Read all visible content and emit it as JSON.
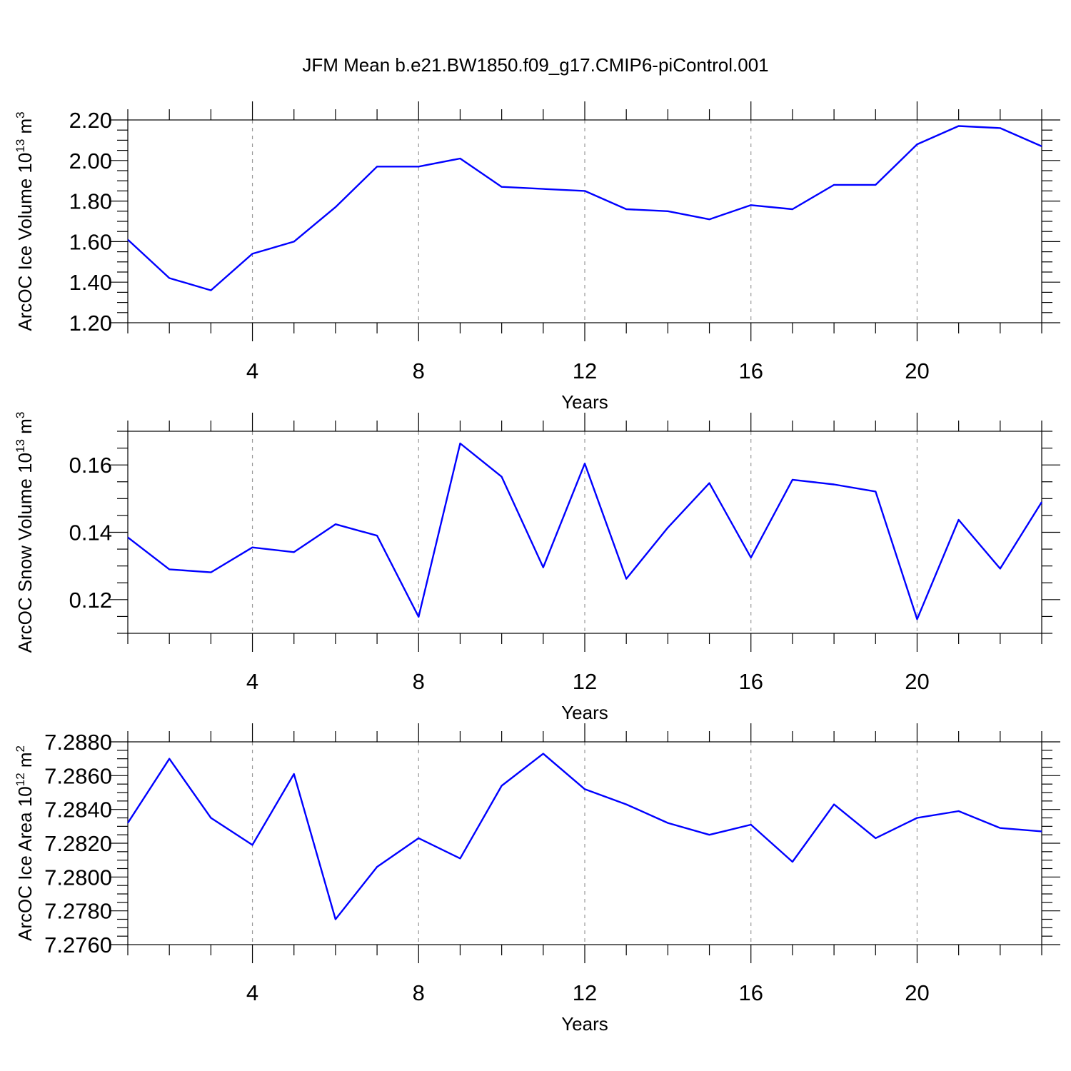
{
  "title": "JFM Mean b.e21.BW1850.f09_g17.CMIP6-piControl.001",
  "colors": {
    "series": "#0000ff",
    "grid": "#999999",
    "axes": "#000000"
  },
  "chart_data": [
    {
      "type": "line",
      "ylabel_main": "ArcOC Ice Volume 10",
      "ylabel_sup": "13",
      "ylabel_unit": " m",
      "ylabel_unit_sup": "3",
      "xlabel": "Years",
      "xlim": [
        1,
        23
      ],
      "ylim": [
        1.2,
        2.2
      ],
      "xticks": [
        4,
        8,
        12,
        16,
        20
      ],
      "xtick_labels": [
        "4",
        "8",
        "12",
        "16",
        "20"
      ],
      "yticks": [
        1.2,
        1.4,
        1.6,
        1.8,
        2.0,
        2.2
      ],
      "ytick_labels": [
        "1.20",
        "1.40",
        "1.60",
        "1.80",
        "2.00",
        "2.20"
      ],
      "grid": "vertical dashed at major x ticks",
      "x": [
        1,
        2,
        3,
        4,
        5,
        6,
        7,
        8,
        9,
        10,
        11,
        12,
        13,
        14,
        15,
        16,
        17,
        18,
        19,
        20,
        21,
        22,
        23
      ],
      "y": [
        1.61,
        1.42,
        1.36,
        1.54,
        1.6,
        1.77,
        1.97,
        1.97,
        2.01,
        1.87,
        1.86,
        1.85,
        1.76,
        1.75,
        1.71,
        1.78,
        1.76,
        1.88,
        1.88,
        2.08,
        2.17,
        2.16,
        2.07
      ]
    },
    {
      "type": "line",
      "ylabel_main": "ArcOC Snow Volume 10",
      "ylabel_sup": "13",
      "ylabel_unit": " m",
      "ylabel_unit_sup": "3",
      "xlabel": "Years",
      "xlim": [
        1,
        23
      ],
      "ylim": [
        0.11,
        0.17
      ],
      "xticks": [
        4,
        8,
        12,
        16,
        20
      ],
      "xtick_labels": [
        "4",
        "8",
        "12",
        "16",
        "20"
      ],
      "yticks": [
        0.12,
        0.14,
        0.16
      ],
      "ytick_labels": [
        "0.12",
        "0.14",
        "0.16"
      ],
      "grid": "vertical dashed at major x ticks",
      "x": [
        1,
        2,
        3,
        4,
        5,
        6,
        7,
        8,
        9,
        10,
        11,
        12,
        13,
        14,
        15,
        16,
        17,
        18,
        19,
        20,
        21,
        22,
        23
      ],
      "y": [
        0.1385,
        0.129,
        0.1281,
        0.1355,
        0.1341,
        0.1424,
        0.139,
        0.1149,
        0.1664,
        0.1565,
        0.1296,
        0.1604,
        0.1262,
        0.1414,
        0.1546,
        0.1325,
        0.1556,
        0.1542,
        0.1521,
        0.1142,
        0.1437,
        0.1292,
        0.149
      ]
    },
    {
      "type": "line",
      "ylabel_main": "ArcOC Ice Area 10",
      "ylabel_sup": "12",
      "ylabel_unit": " m",
      "ylabel_unit_sup": "2",
      "xlabel": "Years",
      "xlim": [
        1,
        23
      ],
      "ylim": [
        7.276,
        7.288
      ],
      "xticks": [
        4,
        8,
        12,
        16,
        20
      ],
      "xtick_labels": [
        "4",
        "8",
        "12",
        "16",
        "20"
      ],
      "yticks": [
        7.276,
        7.278,
        7.28,
        7.282,
        7.284,
        7.286,
        7.288
      ],
      "ytick_labels": [
        "7.2760",
        "7.2780",
        "7.2800",
        "7.2820",
        "7.2840",
        "7.2860",
        "7.2880"
      ],
      "grid": "vertical dashed at major x ticks",
      "x": [
        1,
        2,
        3,
        4,
        5,
        6,
        7,
        8,
        9,
        10,
        11,
        12,
        13,
        14,
        15,
        16,
        17,
        18,
        19,
        20,
        21,
        22,
        23
      ],
      "y": [
        7.2832,
        7.287,
        7.2835,
        7.2819,
        7.2861,
        7.2775,
        7.2806,
        7.2823,
        7.2811,
        7.2854,
        7.2873,
        7.2852,
        7.2843,
        7.2832,
        7.2825,
        7.2831,
        7.2809,
        7.2843,
        7.2823,
        7.2835,
        7.2839,
        7.2829,
        7.2827
      ]
    }
  ]
}
